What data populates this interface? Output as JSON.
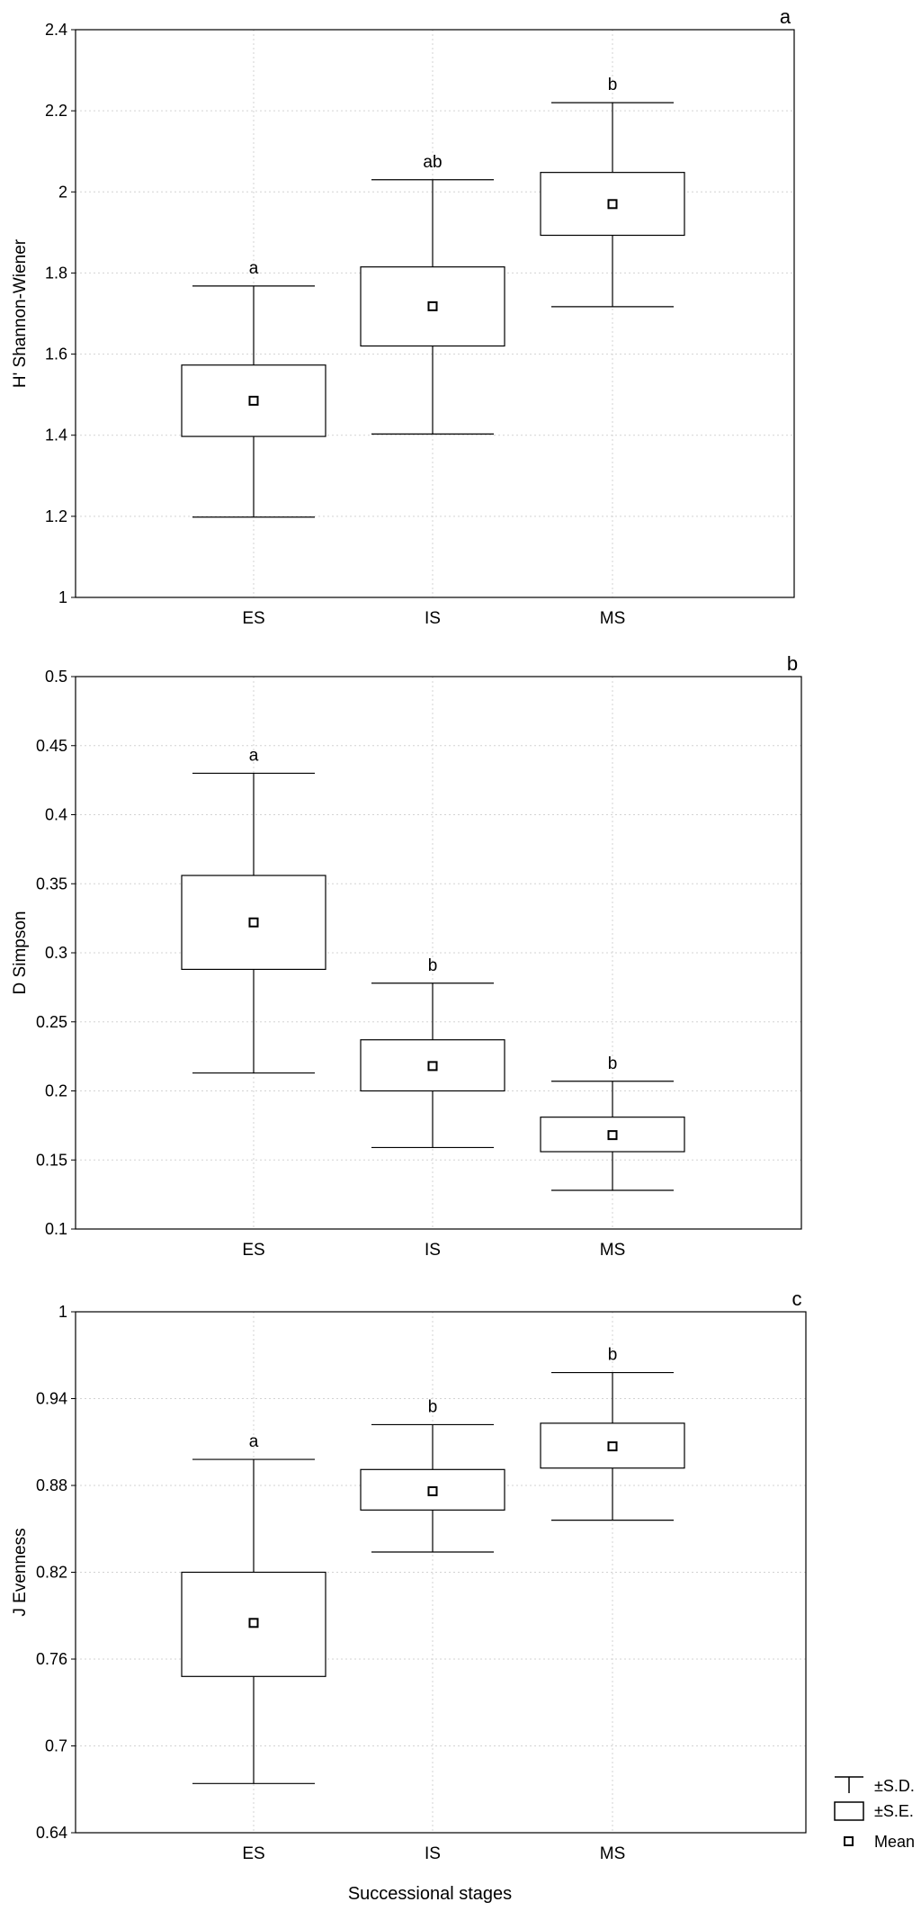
{
  "chart_data": [
    {
      "type": "box",
      "panel_label": "a",
      "ylabel": "H' Shannon-Wiener",
      "categories": [
        "ES",
        "IS",
        "MS"
      ],
      "ylim": [
        1,
        2.4
      ],
      "yticks": [
        "1",
        "1.2",
        "1.4",
        "1.6",
        "1.8",
        "2",
        "2.2",
        "2.4"
      ],
      "grid": true,
      "series": [
        {
          "mean": [
            1.485,
            1.718,
            1.97
          ],
          "se_low": [
            1.397,
            1.62,
            1.893
          ],
          "se_high": [
            1.573,
            1.815,
            2.048
          ],
          "sd_low": [
            1.198,
            1.403,
            1.717
          ],
          "sd_high": [
            1.768,
            2.03,
            2.22
          ]
        }
      ],
      "significance": [
        "a",
        "ab",
        "b"
      ]
    },
    {
      "type": "box",
      "panel_label": "b",
      "ylabel": "D Simpson",
      "categories": [
        "ES",
        "IS",
        "MS"
      ],
      "ylim": [
        0.1,
        0.5
      ],
      "yticks": [
        "0.1",
        "0.15",
        "0.2",
        "0.25",
        "0.3",
        "0.35",
        "0.4",
        "0.45",
        "0.5"
      ],
      "grid": true,
      "series": [
        {
          "mean": [
            0.322,
            0.218,
            0.168
          ],
          "se_low": [
            0.288,
            0.2,
            0.156
          ],
          "se_high": [
            0.356,
            0.237,
            0.181
          ],
          "sd_low": [
            0.213,
            0.159,
            0.128
          ],
          "sd_high": [
            0.43,
            0.278,
            0.207
          ]
        }
      ],
      "significance": [
        "a",
        "b",
        "b"
      ]
    },
    {
      "type": "box",
      "panel_label": "c",
      "ylabel": "J Evenness",
      "xlabel": "Successional stages",
      "categories": [
        "ES",
        "IS",
        "MS"
      ],
      "ylim": [
        0.64,
        1
      ],
      "yticks": [
        "0.64",
        "0.7",
        "0.76",
        "0.82",
        "0.88",
        "0.94",
        "1"
      ],
      "grid": true,
      "series": [
        {
          "mean": [
            0.785,
            0.876,
            0.907
          ],
          "se_low": [
            0.748,
            0.863,
            0.892
          ],
          "se_high": [
            0.82,
            0.891,
            0.923
          ],
          "sd_low": [
            0.674,
            0.834,
            0.856
          ],
          "sd_high": [
            0.898,
            0.922,
            0.958
          ]
        }
      ],
      "significance": [
        "a",
        "b",
        "b"
      ]
    }
  ],
  "legend": {
    "items": [
      {
        "symbol": "whisker",
        "label": "±S.D."
      },
      {
        "symbol": "box",
        "label": "±S.E."
      },
      {
        "symbol": "square",
        "label": "Mean"
      }
    ]
  }
}
